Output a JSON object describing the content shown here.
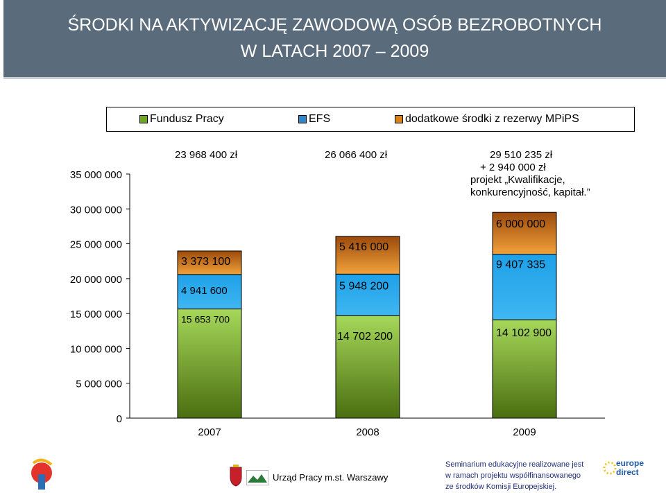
{
  "header": {
    "title_line1": "ŚRODKI NA AKTYWIZACJĘ ZAWODOWĄ OSÓB BEZROBOTNYCH",
    "title_line2": "W LATACH 2007 – 2009"
  },
  "chart_data": {
    "type": "bar",
    "stacked": true,
    "categories": [
      "2007",
      "2008",
      "2009"
    ],
    "series": [
      {
        "name": "Fundusz Pracy",
        "values": [
          15653700,
          14702200,
          14102900
        ],
        "labels": [
          "15 653 700",
          "14 702 200",
          "14 102 900"
        ],
        "color": "#6aa524"
      },
      {
        "name": "EFS",
        "values": [
          4941600,
          5948200,
          9407335
        ],
        "labels": [
          "4 941 600",
          "5 948 200",
          "9 407 335"
        ],
        "color": "#2f86c8"
      },
      {
        "name": "dodatkowe środki z rezerwy MPiPS",
        "values": [
          3373100,
          5416000,
          6000000
        ],
        "labels": [
          "3 373 100",
          "5 416 000",
          "6 000 000"
        ],
        "color": "#d9821c"
      }
    ],
    "totals": [
      "23 968 400 zł",
      "26 066 400 zł",
      "29 510 235 zł"
    ],
    "annotation_2009": [
      "+ 2 940 000 zł",
      "projekt „Kwalifikacje,",
      "konkurencyjność, kapitał.”"
    ],
    "yticks": [
      0,
      5000000,
      10000000,
      15000000,
      20000000,
      25000000,
      30000000,
      35000000
    ],
    "ytick_labels": [
      "0",
      "5 000 000",
      "10 000 000",
      "15 000 000",
      "20 000 000",
      "25 000 000",
      "30 000 000",
      "35 000 000"
    ],
    "ylim": [
      0,
      35000000
    ],
    "legend_position": "top",
    "grid": false
  },
  "footer": {
    "office": "Urząd Pracy m.st. Warszawy",
    "seminar_lines": [
      "Seminarium edukacyjne realizowane jest",
      "w ramach projektu współfinansowanego",
      "ze środków Komisji Europejskiej."
    ],
    "logo_text": "europe direct"
  }
}
